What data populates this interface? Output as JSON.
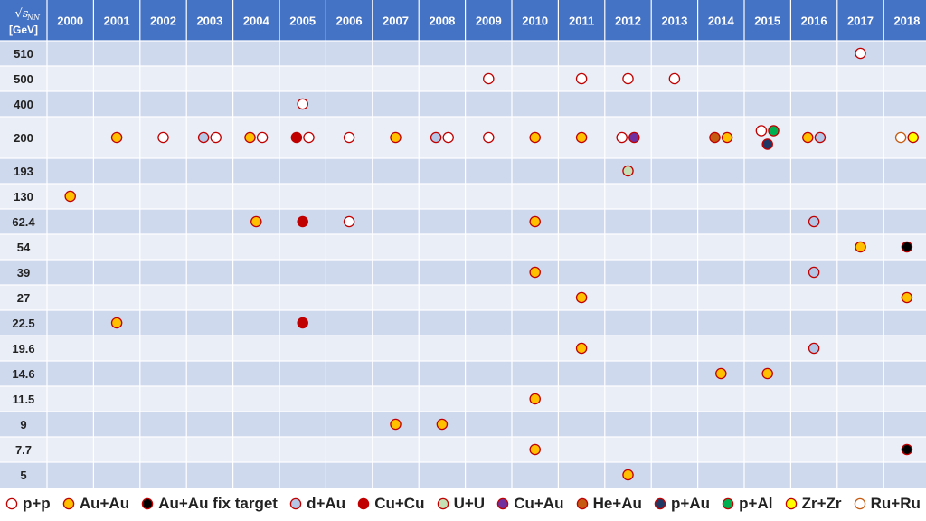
{
  "chart_data": {
    "type": "table",
    "corner_label": {
      "top": "√s",
      "sub": "NN",
      "unit": "[GeV]"
    },
    "years": [
      "2000",
      "2001",
      "2002",
      "2003",
      "2004",
      "2005",
      "2006",
      "2007",
      "2008",
      "2009",
      "2010",
      "2011",
      "2012",
      "2013",
      "2014",
      "2015",
      "2016",
      "2017",
      "2018"
    ],
    "energies": [
      "510",
      "500",
      "400",
      "200",
      "193",
      "130",
      "62.4",
      "54",
      "39",
      "27",
      "22.5",
      "19.6",
      "14.6",
      "11.5",
      "9",
      "7.7",
      "5"
    ],
    "species": [
      {
        "key": "pp",
        "label": "p+p",
        "fill": "#ffffff",
        "stroke": "#c00000"
      },
      {
        "key": "AuAu",
        "label": "Au+Au",
        "fill": "#ffc000",
        "stroke": "#c00000"
      },
      {
        "key": "AuAuFT",
        "label": "Au+Au fix target",
        "fill": "#000000",
        "stroke": "#c00000"
      },
      {
        "key": "dAu",
        "label": "d+Au",
        "fill": "#b4c7e7",
        "stroke": "#c00000"
      },
      {
        "key": "CuCu",
        "label": "Cu+Cu",
        "fill": "#c00000",
        "stroke": "#c00000"
      },
      {
        "key": "UU",
        "label": "U+U",
        "fill": "#c5e0b4",
        "stroke": "#c00000"
      },
      {
        "key": "CuAu",
        "label": "Cu+Au",
        "fill": "#7030a0",
        "stroke": "#c00000"
      },
      {
        "key": "HeAu",
        "label": "He+Au",
        "fill": "#c55a11",
        "stroke": "#c00000"
      },
      {
        "key": "pAu",
        "label": "p+Au",
        "fill": "#1f3864",
        "stroke": "#c00000"
      },
      {
        "key": "pAl",
        "label": "p+Al",
        "fill": "#00b050",
        "stroke": "#c00000"
      },
      {
        "key": "ZrZr",
        "label": "Zr+Zr",
        "fill": "#ffff00",
        "stroke": "#c00000"
      },
      {
        "key": "RuRu",
        "label": "Ru+Ru",
        "fill": "#ffffff",
        "stroke": "#c55a11"
      }
    ],
    "runs": [
      {
        "year": "2017",
        "energy": "510",
        "species": [
          "pp"
        ]
      },
      {
        "year": "2009",
        "energy": "500",
        "species": [
          "pp"
        ]
      },
      {
        "year": "2011",
        "energy": "500",
        "species": [
          "pp"
        ]
      },
      {
        "year": "2012",
        "energy": "500",
        "species": [
          "pp"
        ]
      },
      {
        "year": "2013",
        "energy": "500",
        "species": [
          "pp"
        ]
      },
      {
        "year": "2005",
        "energy": "400",
        "species": [
          "pp"
        ]
      },
      {
        "year": "2001",
        "energy": "200",
        "species": [
          "AuAu"
        ]
      },
      {
        "year": "2002",
        "energy": "200",
        "species": [
          "pp"
        ]
      },
      {
        "year": "2003",
        "energy": "200",
        "species": [
          "dAu",
          "pp"
        ]
      },
      {
        "year": "2004",
        "energy": "200",
        "species": [
          "AuAu",
          "pp"
        ]
      },
      {
        "year": "2005",
        "energy": "200",
        "species": [
          "CuCu",
          "pp"
        ]
      },
      {
        "year": "2006",
        "energy": "200",
        "species": [
          "pp"
        ]
      },
      {
        "year": "2007",
        "energy": "200",
        "species": [
          "AuAu"
        ]
      },
      {
        "year": "2008",
        "energy": "200",
        "species": [
          "dAu",
          "pp"
        ]
      },
      {
        "year": "2009",
        "energy": "200",
        "species": [
          "pp"
        ]
      },
      {
        "year": "2010",
        "energy": "200",
        "species": [
          "AuAu"
        ]
      },
      {
        "year": "2011",
        "energy": "200",
        "species": [
          "AuAu"
        ]
      },
      {
        "year": "2012",
        "energy": "200",
        "species": [
          "pp",
          "CuAu"
        ]
      },
      {
        "year": "2014",
        "energy": "200",
        "species": [
          "HeAu",
          "AuAu"
        ]
      },
      {
        "year": "2015",
        "energy": "200",
        "species": [
          "pp",
          "pAl",
          "pAu"
        ]
      },
      {
        "year": "2016",
        "energy": "200",
        "species": [
          "AuAu",
          "dAu"
        ]
      },
      {
        "year": "2018",
        "energy": "200",
        "species": [
          "RuRu",
          "ZrZr"
        ]
      },
      {
        "year": "2012",
        "energy": "193",
        "species": [
          "UU"
        ]
      },
      {
        "year": "2000",
        "energy": "130",
        "species": [
          "AuAu"
        ]
      },
      {
        "year": "2004",
        "energy": "62.4",
        "species": [
          "AuAu"
        ]
      },
      {
        "year": "2005",
        "energy": "62.4",
        "species": [
          "CuCu"
        ]
      },
      {
        "year": "2006",
        "energy": "62.4",
        "species": [
          "pp"
        ]
      },
      {
        "year": "2010",
        "energy": "62.4",
        "species": [
          "AuAu"
        ]
      },
      {
        "year": "2016",
        "energy": "62.4",
        "species": [
          "dAu"
        ]
      },
      {
        "year": "2017",
        "energy": "54",
        "species": [
          "AuAu"
        ]
      },
      {
        "year": "2018",
        "energy": "54",
        "species": [
          "AuAuFT"
        ]
      },
      {
        "year": "2010",
        "energy": "39",
        "species": [
          "AuAu"
        ]
      },
      {
        "year": "2016",
        "energy": "39",
        "species": [
          "dAu"
        ]
      },
      {
        "year": "2011",
        "energy": "27",
        "species": [
          "AuAu"
        ]
      },
      {
        "year": "2018",
        "energy": "27",
        "species": [
          "AuAu"
        ]
      },
      {
        "year": "2001",
        "energy": "22.5",
        "species": [
          "AuAu"
        ]
      },
      {
        "year": "2005",
        "energy": "22.5",
        "species": [
          "CuCu"
        ]
      },
      {
        "year": "2011",
        "energy": "19.6",
        "species": [
          "AuAu"
        ]
      },
      {
        "year": "2016",
        "energy": "19.6",
        "species": [
          "dAu"
        ]
      },
      {
        "year": "2014",
        "energy": "14.6",
        "species": [
          "AuAu"
        ]
      },
      {
        "year": "2015",
        "energy": "14.6",
        "species": [
          "AuAu"
        ]
      },
      {
        "year": "2010",
        "energy": "11.5",
        "species": [
          "AuAu"
        ]
      },
      {
        "year": "2007",
        "energy": "9",
        "species": [
          "AuAu"
        ]
      },
      {
        "year": "2008",
        "energy": "9",
        "species": [
          "AuAu"
        ]
      },
      {
        "year": "2010",
        "energy": "7.7",
        "species": [
          "AuAu"
        ]
      },
      {
        "year": "2018",
        "energy": "7.7",
        "species": [
          "AuAuFT"
        ]
      },
      {
        "year": "2012",
        "energy": "5",
        "species": [
          "AuAu"
        ]
      }
    ],
    "colors": {
      "header": "#4472c4",
      "row_dark": "#cfd9ee",
      "row_light": "#e9eef7",
      "border": "#ffffff"
    },
    "legend_placement": "bottom"
  }
}
